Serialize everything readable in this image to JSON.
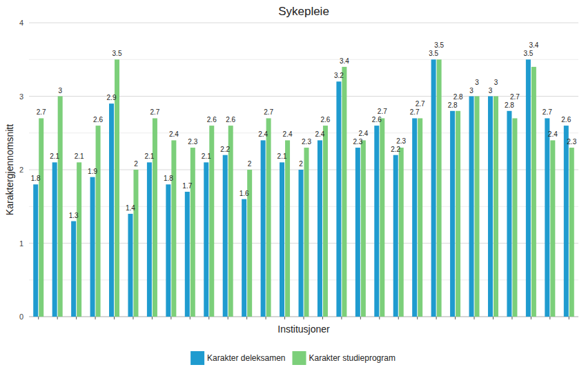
{
  "chart_data": {
    "type": "bar",
    "title": "Sykepleie",
    "x_label": "Institusjoner",
    "y_label": "Karaktergjennomsnitt",
    "categories": [
      null,
      null,
      null,
      null,
      null,
      null,
      null,
      null,
      null,
      null,
      null,
      null,
      null,
      null,
      null,
      null,
      null,
      null,
      null,
      null,
      null,
      null,
      null,
      null,
      null,
      null,
      null,
      null,
      null
    ],
    "series": [
      {
        "name": "Karakter deleksamen",
        "color": "#1f9bcf",
        "values": [
          1.8,
          2.1,
          1.3,
          1.9,
          2.9,
          1.4,
          2.1,
          1.8,
          1.7,
          2.1,
          2.2,
          1.6,
          2.4,
          2.1,
          2,
          2.4,
          3.2,
          2.3,
          2.6,
          2.2,
          2.7,
          3.5,
          2.8,
          3,
          3,
          2.8,
          3.5,
          2.7,
          2.6
        ]
      },
      {
        "name": "Karakter studieprogram",
        "color": "#7ccf7a",
        "values": [
          2.7,
          3,
          2.1,
          2.6,
          3.5,
          2,
          2.7,
          2.4,
          2.3,
          2.6,
          2.6,
          2,
          2.7,
          2.4,
          2.3,
          2.6,
          3.4,
          2.4,
          2.7,
          2.3,
          2.7,
          3.5,
          2.8,
          3,
          3,
          2.7,
          3.4,
          2.4,
          2.3
        ]
      }
    ],
    "ylim": [
      0,
      4
    ],
    "yticks": [
      0,
      1,
      2,
      3,
      4
    ],
    "grid": true,
    "legend": "bottom",
    "data_labels": true
  }
}
